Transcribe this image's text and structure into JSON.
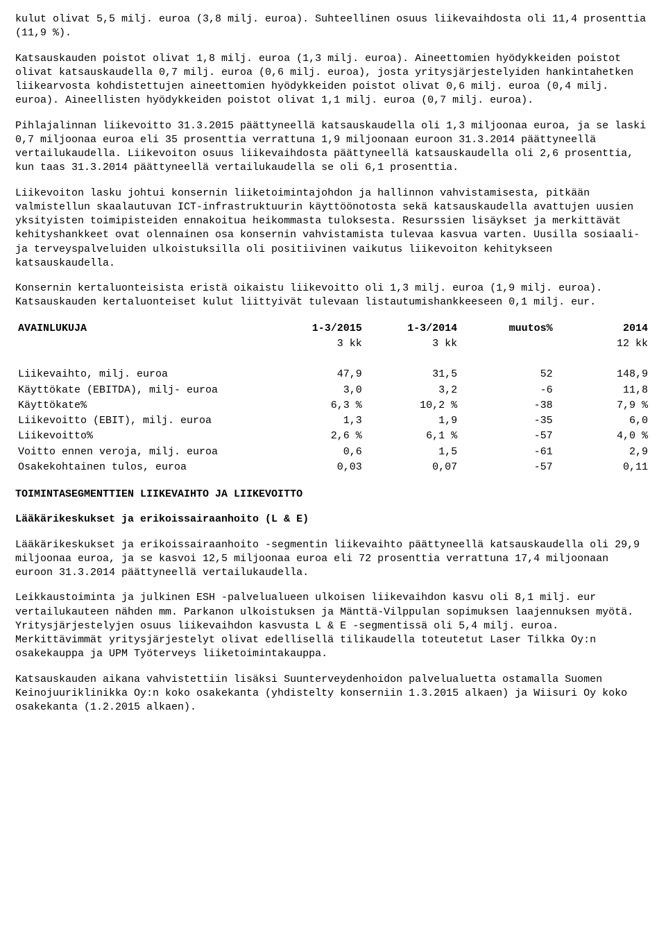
{
  "paragraphs": {
    "p1": "kulut olivat 5,5 milj. euroa (3,8 milj. euroa). Suhteellinen osuus liikevaihdosta oli 11,4 prosenttia (11,9 %).",
    "p2": "Katsauskauden poistot olivat 1,8 milj. euroa (1,3 milj. euroa). Aineettomien hyödykkeiden poistot olivat katsauskaudella 0,7 milj. euroa (0,6 milj. euroa), josta yritysjärjestelyiden hankintahetken liikearvosta kohdistettujen aineettomien hyödykkeiden poistot olivat 0,6 milj. euroa (0,4 milj. euroa). Aineellisten hyödykkeiden poistot olivat 1,1 milj. euroa (0,7 milj. euroa).",
    "p3": "Pihlajalinnan liikevoitto 31.3.2015 päättyneellä katsauskaudella oli 1,3 miljoonaa euroa, ja se laski 0,7 miljoonaa euroa eli 35 prosenttia verrattuna 1,9 miljoonaan euroon 31.3.2014 päättyneellä vertailukaudella. Liikevoiton osuus liikevaihdosta päättyneellä katsauskaudella oli 2,6 prosenttia, kun taas 31.3.2014 päättyneellä vertailukaudella se oli 6,1 prosenttia.",
    "p4": "Liikevoiton lasku johtui konsernin liiketoimintajohdon ja hallinnon vahvistamisesta, pitkään valmistellun skaalautuvan ICT-infrastruktuurin käyttöönotosta sekä katsauskaudella avattujen uusien yksityisten toimipisteiden ennakoitua heikommasta tuloksesta. Resurssien lisäykset ja merkittävät kehityshankkeet ovat olennainen osa konsernin vahvistamista tulevaa kasvua varten. Uusilla sosiaali-ja terveyspalveluiden ulkoistuksilla oli positiivinen vaikutus liikevoiton kehitykseen katsauskaudella.",
    "p5": "Konsernin kertaluonteisista eristä oikaistu liikevoitto oli 1,3 milj. euroa (1,9 milj. euroa). Katsauskauden kertaluonteiset kulut liittyivät tulevaan listautumishankkeeseen 0,1 milj. eur.",
    "p6": "Lääkärikeskukset ja erikoissairaanhoito -segmentin liikevaihto päättyneellä katsauskaudella oli 29,9 miljoonaa euroa, ja se kasvoi 12,5 miljoonaa euroa eli 72 prosenttia verrattuna 17,4 miljoonaan euroon 31.3.2014 päättyneellä vertailukaudella.",
    "p7": "Leikkaustoiminta ja julkinen ESH -palvelualueen ulkoisen liikevaihdon kasvu oli 8,1 milj. eur vertailukauteen nähden mm. Parkanon ulkoistuksen ja Mänttä-Vilppulan sopimuksen laajennuksen myötä. Yritysjärjestelyjen osuus liikevaihdon kasvusta L & E -segmentissä oli 5,4 milj. euroa. Merkittävimmät yritysjärjestelyt olivat edellisellä tilikaudella toteutetut Laser Tilkka Oy:n osakekauppa ja UPM Työterveys liiketoimintakauppa.",
    "p8": "Katsauskauden aikana vahvistettiin lisäksi Suunterveydenhoidon palvelualuetta ostamalla Suomen Keinojuuriklinikka Oy:n koko osakekanta (yhdistelty konserniin 1.3.2015 alkaen) ja Wiisuri Oy koko osakekanta (1.2.2015 alkaen)."
  },
  "headings": {
    "segments": "TOIMINTASEGMENTTIEN LIIKEVAIHTO JA LIIKEVOITTO",
    "le": "Lääkärikeskukset ja erikoissairaanhoito (L & E)"
  },
  "table": {
    "title": "AVAINLUKUJA",
    "header": [
      "1-3/2015",
      "1-3/2014",
      "muutos%",
      "2014"
    ],
    "subheader": [
      "3 kk",
      "3 kk",
      "",
      "12 kk"
    ],
    "rows": [
      {
        "label": "Liikevaihto, milj. euroa",
        "c1": "47,9",
        "c2": "31,5",
        "c3": "52",
        "c4": "148,9"
      },
      {
        "label": "Käyttökate (EBITDA), milj- euroa",
        "c1": "3,0",
        "c2": "3,2",
        "c3": "-6",
        "c4": "11,8"
      },
      {
        "label": "Käyttökate%",
        "c1": "6,3 %",
        "c2": "10,2 %",
        "c3": "-38",
        "c4": "7,9 %"
      },
      {
        "label": "Liikevoitto (EBIT), milj. euroa",
        "c1": "1,3",
        "c2": "1,9",
        "c3": "-35",
        "c4": "6,0"
      },
      {
        "label": "Liikevoitto%",
        "c1": "2,6 %",
        "c2": "6,1 %",
        "c3": "-57",
        "c4": "4,0 %"
      },
      {
        "label": "Voitto ennen veroja, milj. euroa",
        "c1": "0,6",
        "c2": "1,5",
        "c3": "-61",
        "c4": "2,9"
      },
      {
        "label": "Osakekohtainen tulos, euroa",
        "c1": "0,03",
        "c2": "0,07",
        "c3": "-57",
        "c4": "0,11"
      }
    ]
  }
}
